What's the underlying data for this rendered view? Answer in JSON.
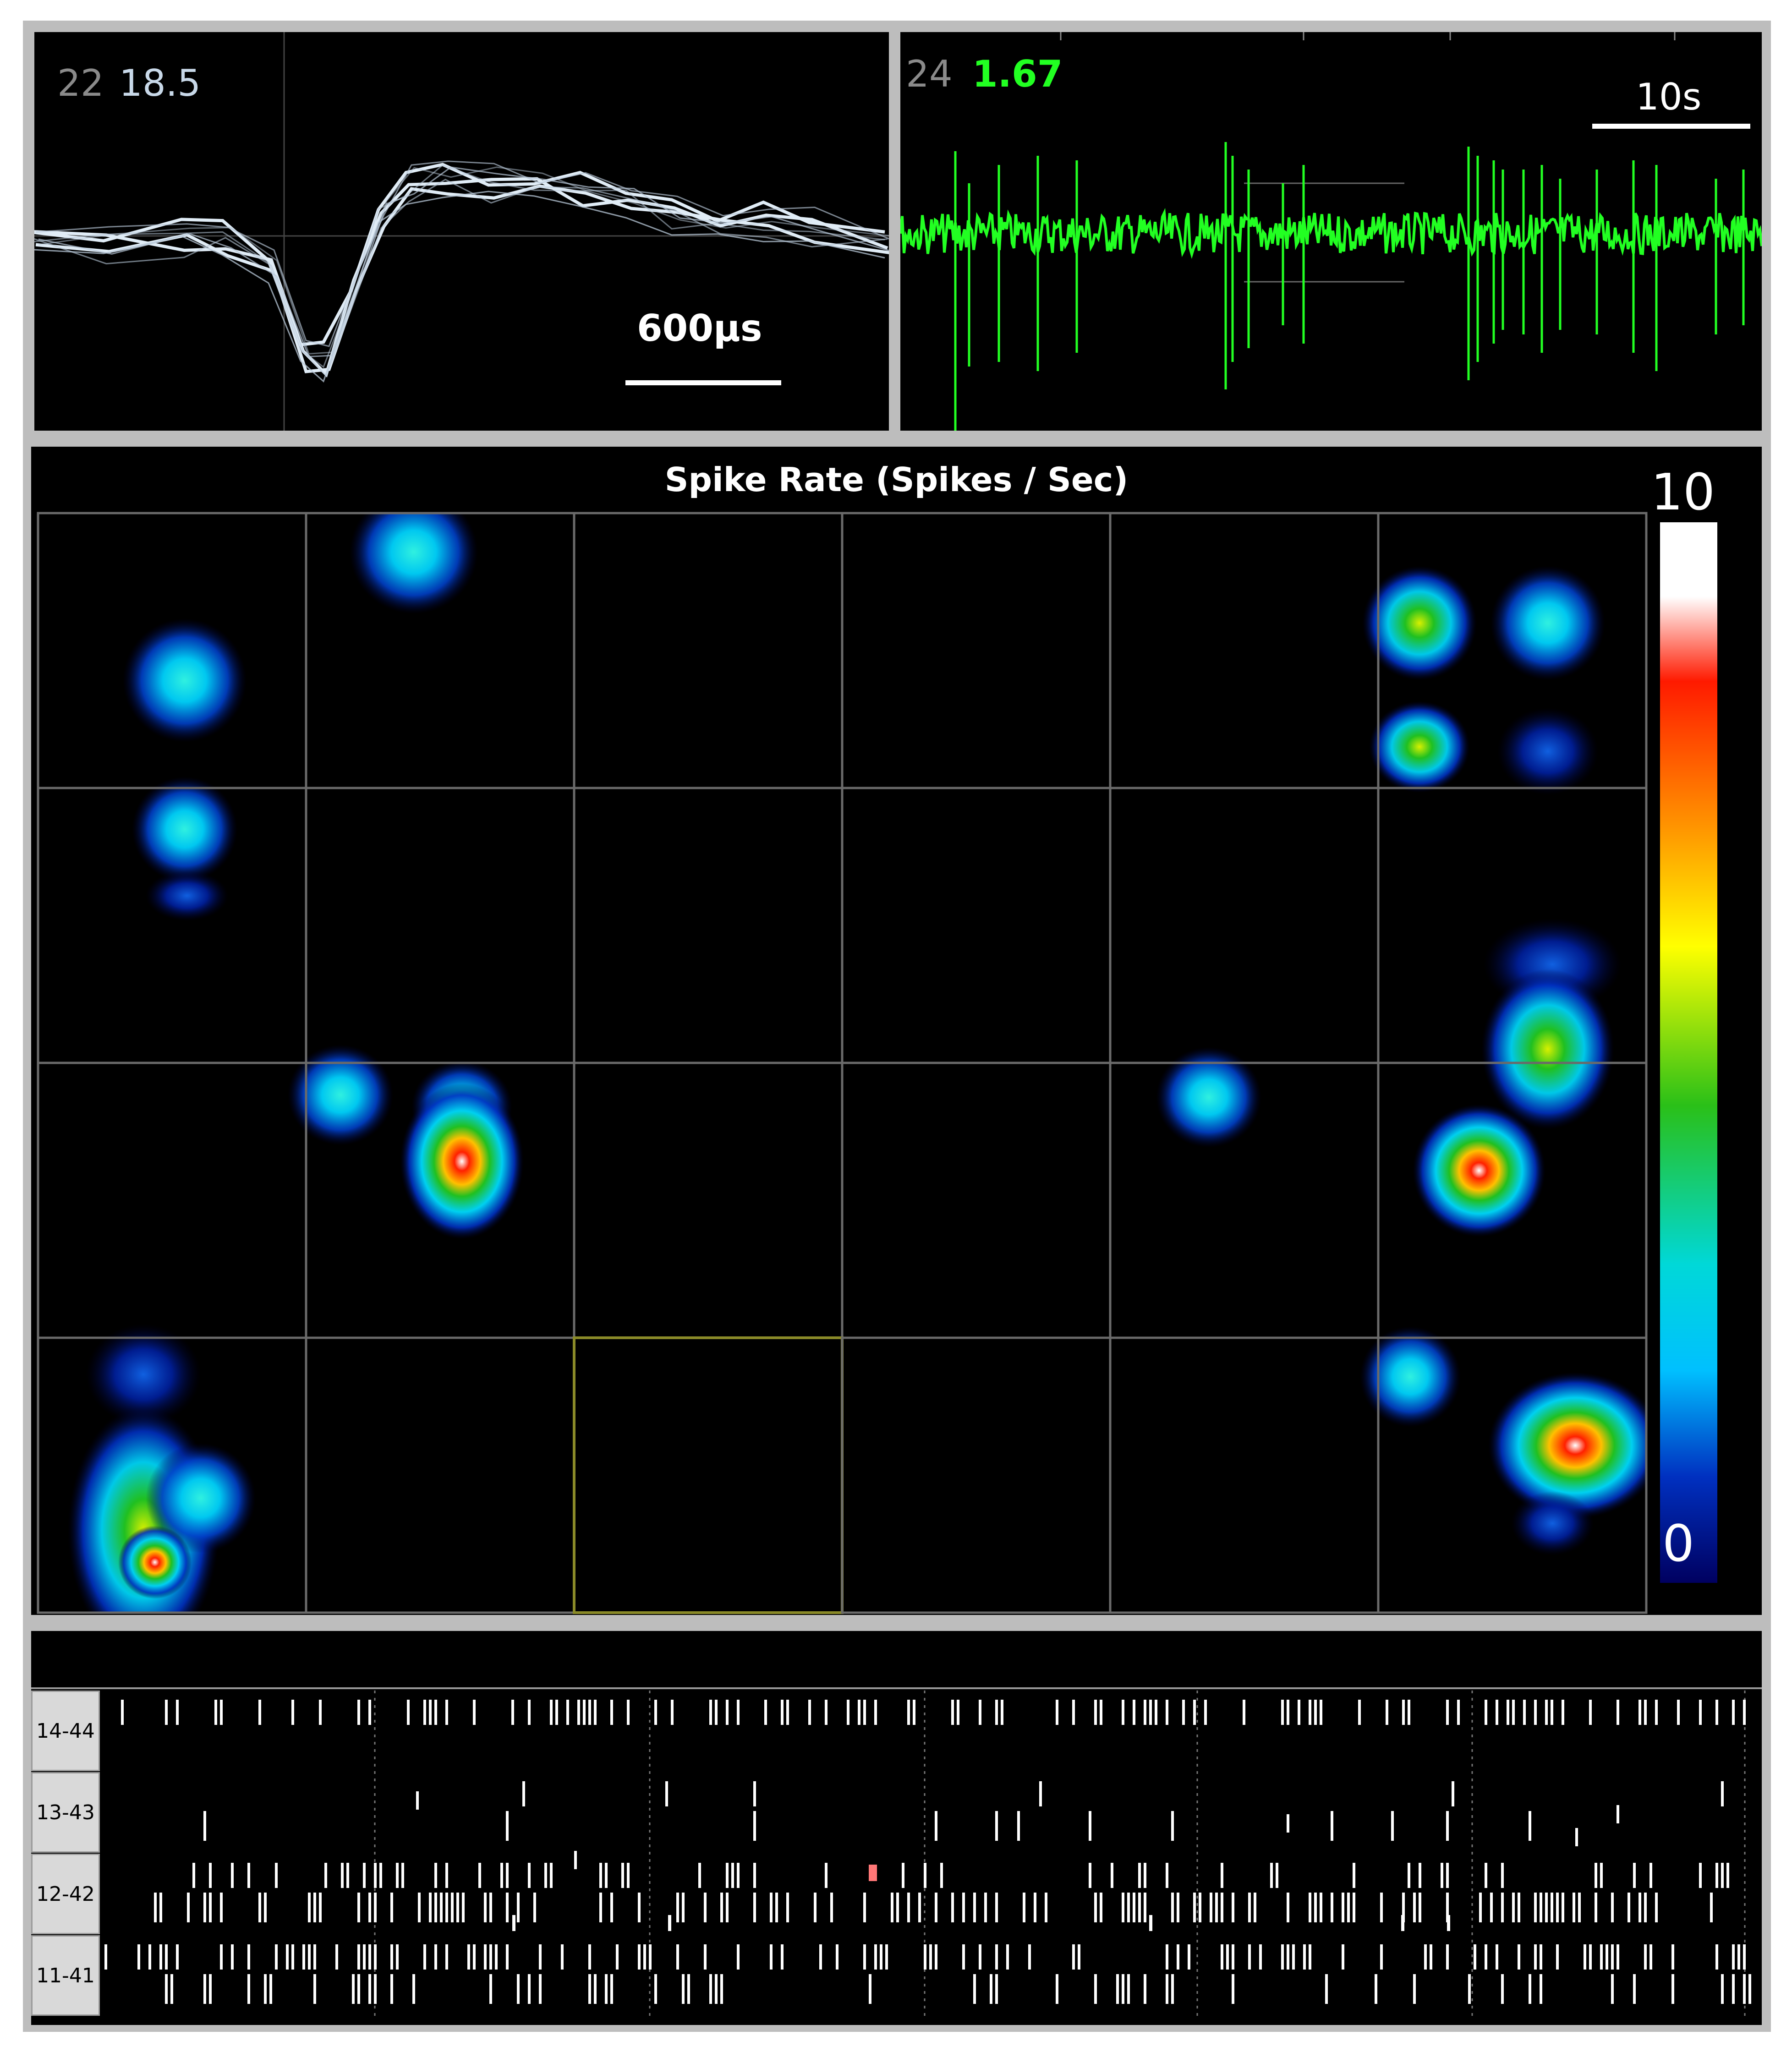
{
  "waveform": {
    "channel": "22",
    "value": "18.5",
    "scale_label": "600µs",
    "value_color": "#c8d8e8",
    "channel_color": "#8a8a8a"
  },
  "trace": {
    "channel": "24",
    "value": "1.67",
    "scale_label": "10s",
    "trace_color": "#22ff22"
  },
  "heatmap": {
    "title": "Spike Rate (Spikes / Sec)",
    "colorbar": {
      "max_label": "10",
      "min_label": "0"
    },
    "grid": {
      "rows": 4,
      "cols": 6,
      "highlighted_cell": "row 4, col 3"
    }
  },
  "raster": {
    "channels": [
      "14-44",
      "13-43",
      "12-42",
      "11-41"
    ],
    "spike_color": "#ffffff",
    "highlight_color": "#ff7777"
  }
}
